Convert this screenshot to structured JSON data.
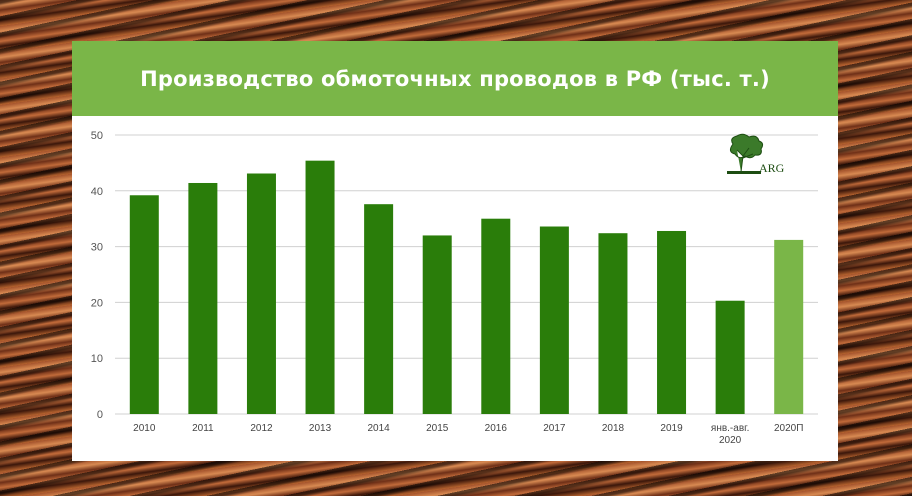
{
  "title": "Производство обмоточных проводов в РФ (тыс. т.)",
  "logo_text": "ARG",
  "chart_data": {
    "type": "bar",
    "categories": [
      "2010",
      "2011",
      "2012",
      "2013",
      "2014",
      "2015",
      "2016",
      "2017",
      "2018",
      "2019",
      "янв.-авг.|2020",
      "2020П"
    ],
    "values": [
      39.2,
      41.4,
      43.1,
      45.4,
      37.6,
      32.0,
      35.0,
      33.6,
      32.4,
      32.8,
      20.3,
      31.2
    ],
    "ylim": [
      0,
      50
    ],
    "yticks": [
      0,
      10,
      20,
      30,
      40,
      50
    ],
    "grid": true,
    "colors": {
      "actual": "#2a7d0a",
      "forecast": "#7ab648",
      "grid": "#d0d0d0"
    },
    "forecast_index": 11,
    "xlabel": "",
    "ylabel": ""
  }
}
